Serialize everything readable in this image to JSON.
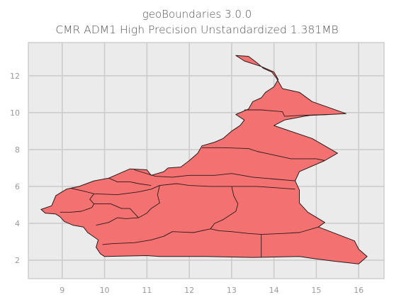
{
  "chart_data": {
    "type": "map",
    "title": "geoBoundaries 3.0.0",
    "subtitle": "CMR ADM1 High Precision Unstandardized 1.381MB",
    "xlim": [
      8.2,
      16.6
    ],
    "ylim": [
      1.0,
      13.8
    ],
    "x_ticks": [
      9,
      10,
      11,
      12,
      13,
      14,
      15,
      16
    ],
    "y_ticks": [
      2,
      4,
      6,
      8,
      10,
      12
    ],
    "grid": true,
    "fill_color": "#f47171",
    "edge_color": "#2a1a1a",
    "background_color": "#ebebeb",
    "grid_color": "#cccccc",
    "outline": [
      [
        13.1,
        13.1
      ],
      [
        13.4,
        13.05
      ],
      [
        13.6,
        12.7
      ],
      [
        13.75,
        12.4
      ],
      [
        13.95,
        12.2
      ],
      [
        14.05,
        11.9
      ],
      [
        14.2,
        11.3
      ],
      [
        14.6,
        11.1
      ],
      [
        14.9,
        10.6
      ],
      [
        15.7,
        9.95
      ],
      [
        15.3,
        9.9
      ],
      [
        14.85,
        9.85
      ],
      [
        14.7,
        9.8
      ],
      [
        14.25,
        9.6
      ],
      [
        14.0,
        9.3
      ],
      [
        14.9,
        8.6
      ],
      [
        15.5,
        7.8
      ],
      [
        15.2,
        7.4
      ],
      [
        14.6,
        6.8
      ],
      [
        14.5,
        6.3
      ],
      [
        14.6,
        5.8
      ],
      [
        14.6,
        5.1
      ],
      [
        14.8,
        4.6
      ],
      [
        15.2,
        4.05
      ],
      [
        15.05,
        3.8
      ],
      [
        15.9,
        3.05
      ],
      [
        16.0,
        2.6
      ],
      [
        16.2,
        2.2
      ],
      [
        16.0,
        1.8
      ],
      [
        15.4,
        1.95
      ],
      [
        14.9,
        2.1
      ],
      [
        14.6,
        2.2
      ],
      [
        13.5,
        2.15
      ],
      [
        12.4,
        2.2
      ],
      [
        11.3,
        2.2
      ],
      [
        11.0,
        2.25
      ],
      [
        10.0,
        2.2
      ],
      [
        9.9,
        2.35
      ],
      [
        9.8,
        2.7
      ],
      [
        9.85,
        3.1
      ],
      [
        9.6,
        3.5
      ],
      [
        9.5,
        3.8
      ],
      [
        9.25,
        3.9
      ],
      [
        9.05,
        4.1
      ],
      [
        8.95,
        4.35
      ],
      [
        8.85,
        4.5
      ],
      [
        8.6,
        4.55
      ],
      [
        8.5,
        4.75
      ],
      [
        8.75,
        4.95
      ],
      [
        8.85,
        5.5
      ],
      [
        9.1,
        5.85
      ],
      [
        9.4,
        6.0
      ],
      [
        9.75,
        6.3
      ],
      [
        10.1,
        6.45
      ],
      [
        10.6,
        6.95
      ],
      [
        11.0,
        6.9
      ],
      [
        11.1,
        6.6
      ],
      [
        11.4,
        6.8
      ],
      [
        11.5,
        7.0
      ],
      [
        11.8,
        7.05
      ],
      [
        12.0,
        7.4
      ],
      [
        12.2,
        7.8
      ],
      [
        12.3,
        8.2
      ],
      [
        12.6,
        8.4
      ],
      [
        12.8,
        8.6
      ],
      [
        13.0,
        9.0
      ],
      [
        13.2,
        9.3
      ],
      [
        13.3,
        9.6
      ],
      [
        13.1,
        9.9
      ],
      [
        13.4,
        10.2
      ],
      [
        13.5,
        10.6
      ],
      [
        13.7,
        10.8
      ],
      [
        13.8,
        11.1
      ],
      [
        14.0,
        11.4
      ],
      [
        14.1,
        11.8
      ],
      [
        14.0,
        12.2
      ],
      [
        13.7,
        12.5
      ],
      [
        13.3,
        12.8
      ],
      [
        13.1,
        13.1
      ]
    ],
    "boundaries": [
      [
        [
          13.3,
          10.15
        ],
        [
          13.7,
          10.15
        ],
        [
          14.2,
          10.05
        ],
        [
          14.25,
          9.8
        ],
        [
          14.6,
          9.85
        ],
        [
          15.3,
          9.9
        ]
      ],
      [
        [
          12.3,
          8.1
        ],
        [
          12.8,
          8.1
        ],
        [
          13.4,
          8.05
        ],
        [
          13.6,
          7.9
        ],
        [
          14.0,
          7.7
        ],
        [
          14.4,
          7.5
        ],
        [
          15.0,
          7.5
        ],
        [
          15.2,
          7.4
        ]
      ],
      [
        [
          10.7,
          6.9
        ],
        [
          11.2,
          6.55
        ],
        [
          11.6,
          6.5
        ],
        [
          12.0,
          6.6
        ],
        [
          12.6,
          6.6
        ],
        [
          13.0,
          6.7
        ],
        [
          13.5,
          6.5
        ],
        [
          14.0,
          6.4
        ],
        [
          14.5,
          6.3
        ]
      ],
      [
        [
          10.1,
          6.45
        ],
        [
          10.3,
          6.25
        ],
        [
          10.6,
          6.25
        ],
        [
          10.8,
          6.15
        ],
        [
          11.1,
          6.05
        ]
      ],
      [
        [
          9.2,
          5.9
        ],
        [
          9.5,
          5.75
        ],
        [
          9.75,
          5.6
        ],
        [
          10.3,
          5.55
        ],
        [
          10.8,
          5.7
        ],
        [
          11.1,
          5.85
        ],
        [
          11.3,
          6.05
        ],
        [
          11.7,
          6.15
        ],
        [
          12.0,
          6.05
        ],
        [
          12.5,
          6.0
        ],
        [
          13.0,
          6.0
        ],
        [
          13.6,
          6.0
        ],
        [
          14.5,
          5.85
        ]
      ],
      [
        [
          11.3,
          6.05
        ],
        [
          11.25,
          5.55
        ],
        [
          11.3,
          5.1
        ],
        [
          11.1,
          4.8
        ],
        [
          11.0,
          4.55
        ],
        [
          10.8,
          4.3
        ],
        [
          10.5,
          4.25
        ],
        [
          10.3,
          4.3
        ],
        [
          10.1,
          4.05
        ],
        [
          9.9,
          3.95
        ],
        [
          9.8,
          3.9
        ]
      ],
      [
        [
          9.75,
          5.6
        ],
        [
          9.65,
          5.3
        ],
        [
          9.75,
          5.05
        ],
        [
          9.7,
          4.85
        ],
        [
          9.45,
          4.65
        ],
        [
          9.2,
          4.6
        ],
        [
          8.95,
          4.6
        ]
      ],
      [
        [
          9.75,
          5.05
        ],
        [
          10.15,
          5.05
        ],
        [
          10.4,
          4.8
        ],
        [
          10.6,
          4.8
        ],
        [
          10.8,
          4.3
        ]
      ],
      [
        [
          13.0,
          6.0
        ],
        [
          13.05,
          5.5
        ],
        [
          13.15,
          5.05
        ],
        [
          13.1,
          4.65
        ],
        [
          12.8,
          4.2
        ],
        [
          12.6,
          4.0
        ],
        [
          12.5,
          3.7
        ],
        [
          12.1,
          3.5
        ],
        [
          11.6,
          3.55
        ],
        [
          11.4,
          3.3
        ],
        [
          11.1,
          3.1
        ],
        [
          10.7,
          2.95
        ],
        [
          10.2,
          2.9
        ],
        [
          9.95,
          2.85
        ]
      ],
      [
        [
          12.5,
          3.7
        ],
        [
          12.7,
          3.6
        ],
        [
          13.0,
          3.55
        ],
        [
          13.4,
          3.45
        ],
        [
          13.7,
          3.4
        ],
        [
          14.2,
          3.45
        ],
        [
          14.6,
          3.5
        ],
        [
          15.05,
          3.8
        ]
      ],
      [
        [
          13.7,
          3.4
        ],
        [
          13.7,
          2.9
        ],
        [
          13.7,
          2.4
        ],
        [
          13.7,
          2.15
        ]
      ]
    ]
  }
}
